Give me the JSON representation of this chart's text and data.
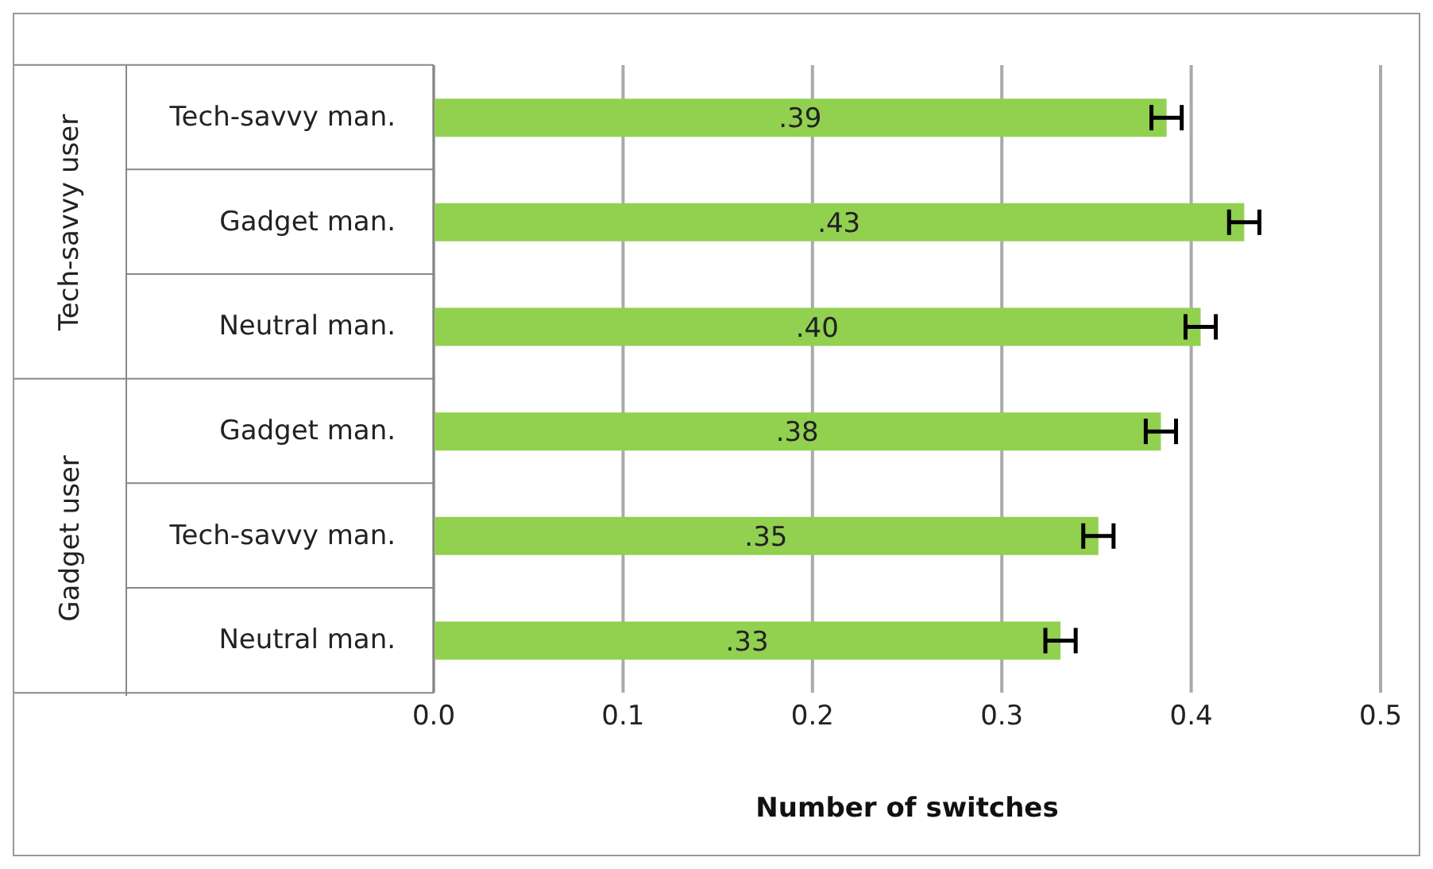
{
  "chart_data": {
    "type": "bar",
    "orientation": "horizontal",
    "xlabel": "Number of switches",
    "categories": [
      "Tech-savvy man.",
      "Gadget man.",
      "Neutral man.",
      "Gadget man.",
      "Tech-savvy man.",
      "Neutral man."
    ],
    "values": [
      0.387,
      0.428,
      0.405,
      0.384,
      0.351,
      0.331
    ],
    "errors": [
      0.008,
      0.008,
      0.008,
      0.008,
      0.008,
      0.008
    ],
    "value_labels": [
      ".39",
      ".43",
      ".40",
      ".38",
      ".35",
      ".33"
    ],
    "color": "#92d050",
    "xlim": [
      0,
      0.5
    ],
    "xticks": [
      {
        "value": 0,
        "label": "0.0"
      },
      {
        "value": 0.1,
        "label": "0.1"
      },
      {
        "value": 0.2,
        "label": "0.2"
      },
      {
        "value": 0.3,
        "label": "0.3"
      },
      {
        "value": 0.4,
        "label": "0.4"
      },
      {
        "value": 0.5,
        "label": "0.5"
      }
    ],
    "grid": "x",
    "annotations": [
      "Tech-savvy user",
      "Gadget user"
    ]
  }
}
